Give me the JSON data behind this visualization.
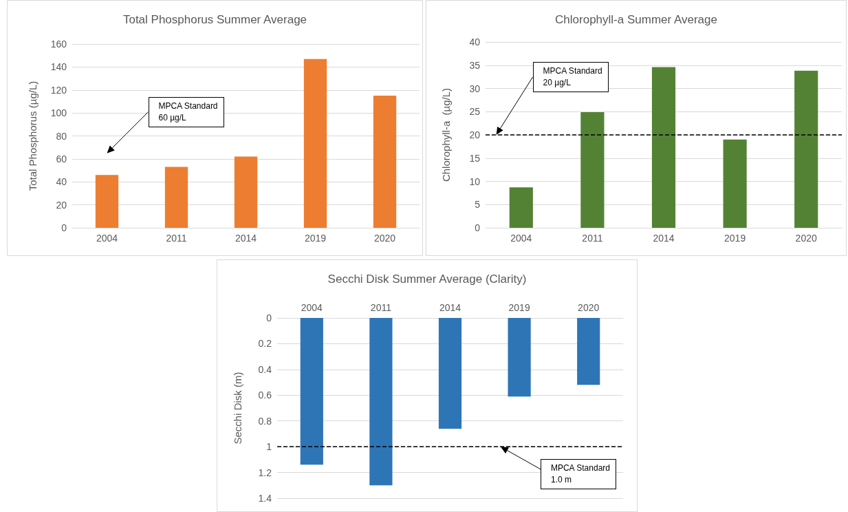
{
  "chart_data": [
    {
      "type": "bar",
      "title": "Total Phosphorus Summer Average",
      "ylabel": "Total Phosphorus (µg/L)",
      "categories": [
        "2004",
        "2011",
        "2014",
        "2019",
        "2020"
      ],
      "values": [
        46,
        53,
        62,
        147,
        115
      ],
      "color": "#ed7d31",
      "ylim": [
        0,
        160
      ],
      "yticks": [
        0,
        20,
        40,
        60,
        80,
        100,
        120,
        140,
        160
      ],
      "grid": "y",
      "annotations": [
        "MPCA Standard\n60 µg/L"
      ]
    },
    {
      "type": "bar",
      "title": "Chlorophyll-a Summer Average",
      "ylabel": "Chlorophyll-a  (µg/L)",
      "categories": [
        "2004",
        "2011",
        "2014",
        "2019",
        "2020"
      ],
      "values": [
        8.7,
        24.9,
        34.6,
        19,
        33.8
      ],
      "color": "#548235",
      "ylim": [
        0,
        40
      ],
      "yticks": [
        0,
        5,
        10,
        15,
        20,
        25,
        30,
        35,
        40
      ],
      "grid": "y",
      "ref_lines": [
        {
          "axis": "y",
          "value": 20,
          "label": "MPCA Standard\n20 µg/L",
          "color": "#000000",
          "line_style": "dashed"
        }
      ]
    },
    {
      "type": "bar",
      "title": "Secchi Disk Summer Average (Clarity)",
      "ylabel": "Secchi Disk (m)",
      "categories": [
        "2004",
        "2011",
        "2014",
        "2019",
        "2020"
      ],
      "values": [
        1.14,
        1.3,
        0.86,
        0.61,
        0.52
      ],
      "color": "#2e75b6",
      "ylim": [
        1.4,
        0
      ],
      "yticks": [
        0,
        0.2,
        0.4,
        0.6,
        0.8,
        1,
        1.2,
        1.4
      ],
      "grid": "y",
      "ref_lines": [
        {
          "axis": "y",
          "value": 1,
          "label": "MPCA Standard\n1.0 m",
          "color": "#000000",
          "line_style": "dashed"
        }
      ]
    }
  ]
}
